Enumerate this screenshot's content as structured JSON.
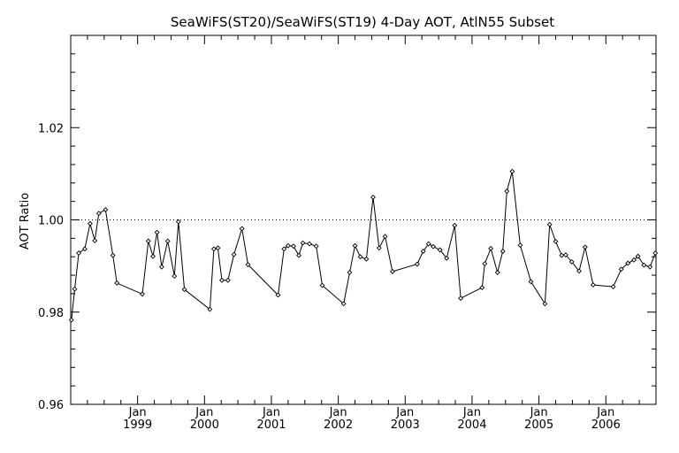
{
  "chart_data": {
    "type": "line",
    "title": "SeaWiFS(ST20)/SeaWiFS(ST19) 4-Day AOT, AtlN55 Subset",
    "ylabel": "AOT Ratio",
    "xlabel": "",
    "ylim": [
      0.96,
      1.04
    ],
    "xlim": [
      1998.0,
      2006.75
    ],
    "yticks": [
      {
        "value": 0.96,
        "label": "0.96"
      },
      {
        "value": 0.98,
        "label": "0.98"
      },
      {
        "value": 1.0,
        "label": "1.00"
      },
      {
        "value": 1.02,
        "label": "1.02"
      }
    ],
    "xticks": [
      {
        "value": 1999,
        "month": "Jan",
        "year": "1999"
      },
      {
        "value": 2000,
        "month": "Jan",
        "year": "2000"
      },
      {
        "value": 2001,
        "month": "Jan",
        "year": "2001"
      },
      {
        "value": 2002,
        "month": "Jan",
        "year": "2002"
      },
      {
        "value": 2003,
        "month": "Jan",
        "year": "2003"
      },
      {
        "value": 2004,
        "month": "Jan",
        "year": "2004"
      },
      {
        "value": 2005,
        "month": "Jan",
        "year": "2005"
      },
      {
        "value": 2006,
        "month": "Jan",
        "year": "2006"
      }
    ],
    "reference_line": 1.0,
    "grid": false,
    "series": [
      {
        "x": [
          1998.01,
          1998.06,
          1998.12,
          1998.21,
          1998.29,
          1998.36,
          1998.42,
          1998.52,
          1998.63,
          1998.69,
          1999.07,
          1999.16,
          1999.23,
          1999.29,
          1999.36,
          1999.45,
          1999.55,
          1999.61,
          1999.7,
          2000.08,
          2000.14,
          2000.2,
          2000.26,
          2000.35,
          2000.44,
          2000.56,
          2000.65,
          2001.1,
          2001.19,
          2001.25,
          2001.33,
          2001.41,
          2001.47,
          2001.57,
          2001.67,
          2001.76,
          2002.08,
          2002.17,
          2002.25,
          2002.33,
          2002.42,
          2002.52,
          2002.61,
          2002.7,
          2002.81,
          2003.18,
          2003.27,
          2003.35,
          2003.42,
          2003.52,
          2003.62,
          2003.74,
          2003.83,
          2004.15,
          2004.19,
          2004.28,
          2004.38,
          2004.46,
          2004.52,
          2004.6,
          2004.72,
          2004.88,
          2005.09,
          2005.16,
          2005.25,
          2005.34,
          2005.4,
          2005.49,
          2005.6,
          2005.69,
          2005.81,
          2006.11,
          2006.23,
          2006.33,
          2006.42,
          2006.48,
          2006.57,
          2006.66,
          2006.74
        ],
        "y": [
          0.9783,
          0.985,
          0.9928,
          0.9937,
          0.9992,
          0.9955,
          1.0014,
          1.0022,
          0.9923,
          0.9863,
          0.9839,
          0.9954,
          0.9921,
          0.9973,
          0.9898,
          0.9954,
          0.9878,
          0.9996,
          0.9849,
          0.9806,
          0.9937,
          0.9939,
          0.9869,
          0.9869,
          0.9925,
          0.9981,
          0.9903,
          0.9837,
          0.9937,
          0.9944,
          0.9943,
          0.9923,
          0.995,
          0.9948,
          0.9943,
          0.9858,
          0.9818,
          0.9886,
          0.9944,
          0.992,
          0.9915,
          1.0049,
          0.9939,
          0.9964,
          0.9888,
          0.9904,
          0.9932,
          0.9948,
          0.9942,
          0.9935,
          0.9917,
          0.9988,
          0.983,
          0.9853,
          0.9905,
          0.9938,
          0.9886,
          0.9932,
          1.0062,
          1.0105,
          0.9945,
          0.9866,
          0.9818,
          0.999,
          0.9953,
          0.9923,
          0.9924,
          0.9909,
          0.9889,
          0.9941,
          0.9859,
          0.9855,
          0.9893,
          0.9906,
          0.9913,
          0.9921,
          0.9902,
          0.9898,
          0.9928
        ]
      }
    ]
  }
}
